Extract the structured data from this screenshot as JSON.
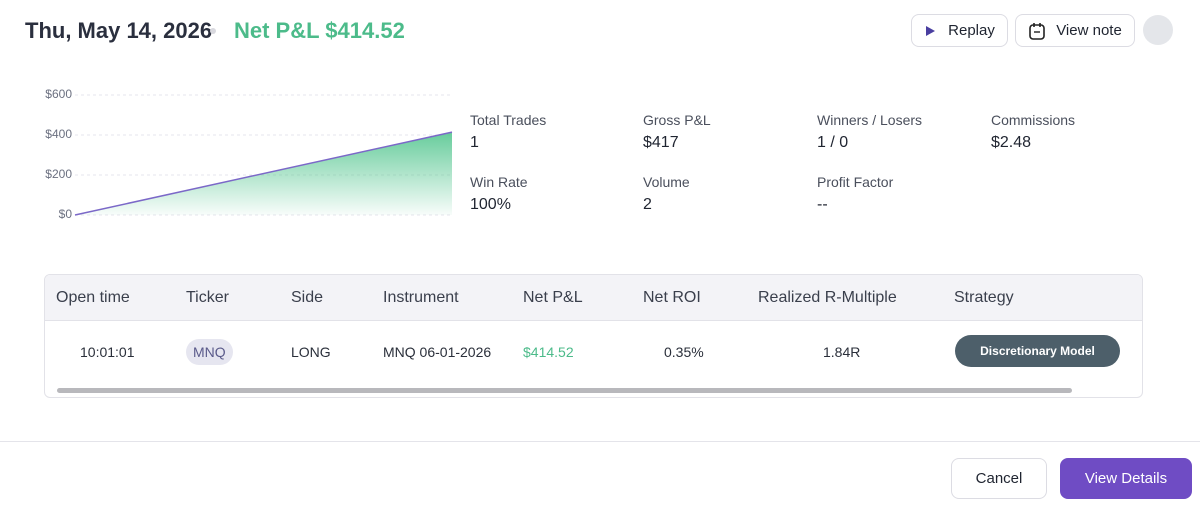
{
  "header": {
    "date": "Thu, May 14, 2026",
    "net_pnl": "Net P&L $414.52",
    "buttons": [
      "Replay",
      "View note"
    ]
  },
  "chart_data": {
    "type": "area",
    "categories": [
      null,
      null
    ],
    "values": [
      0,
      414.52
    ],
    "color": "#7b68c8",
    "fill": "#4cc38a",
    "ylim": [
      0,
      600
    ],
    "yticks": [
      {
        "value": 0,
        "label": "$0"
      },
      {
        "value": 200,
        "label": "$200"
      },
      {
        "value": 400,
        "label": "$400"
      },
      {
        "value": 600,
        "label": "$600"
      }
    ],
    "grid": true
  },
  "stats": [
    {
      "label": "Total Trades",
      "value": "1"
    },
    {
      "label": "Gross P&L",
      "value": "$417"
    },
    {
      "label": "Winners / Losers",
      "value": "1 / 0"
    },
    {
      "label": "Commissions",
      "value": "$2.48"
    },
    {
      "label": "Win Rate",
      "value": "100%"
    },
    {
      "label": "Volume",
      "value": "2"
    },
    {
      "label": "Profit Factor",
      "value": "--"
    }
  ],
  "table": {
    "headers": [
      "Open time",
      "Ticker",
      "Side",
      "Instrument",
      "Net P&L",
      "Net ROI",
      "Realized R-Multiple",
      "Strategy"
    ],
    "rows": [
      [
        "10:01:01",
        "MNQ",
        "LONG",
        "MNQ 06-01-2026",
        "$414.52",
        "0.35%",
        "1.84R",
        "Discretionary Model"
      ]
    ]
  },
  "footer": {
    "buttons": [
      "Cancel",
      "View Details"
    ]
  }
}
